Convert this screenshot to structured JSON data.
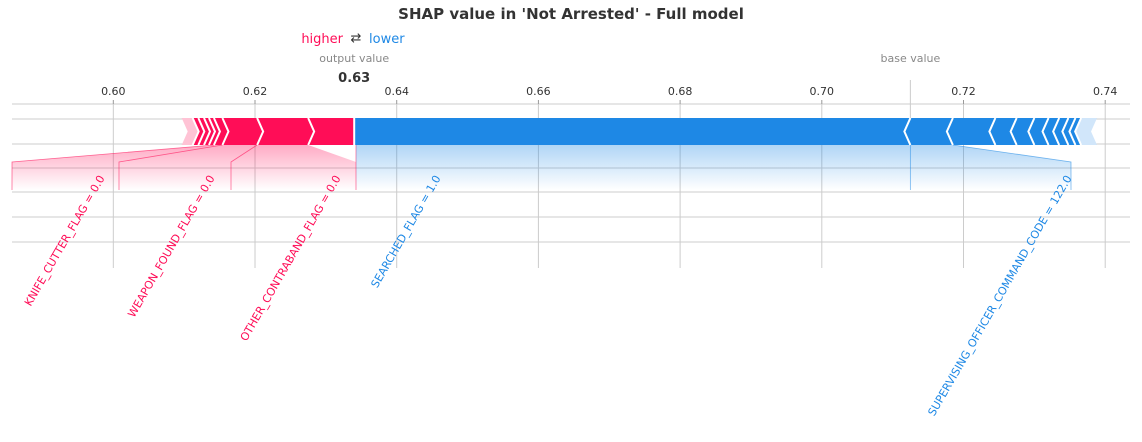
{
  "chart_data": {
    "type": "force",
    "title": "SHAP value in 'Not Arrested' - Full model",
    "legend": {
      "higher": "higher",
      "arrow": "⇄",
      "lower": "lower"
    },
    "output_label": "output value",
    "output_value": 0.634,
    "output_value_text": "0.63",
    "base_label": "base value",
    "base_value": 0.7125,
    "xlim": [
      0.5857,
      0.7435
    ],
    "ticks": [
      0.6,
      0.62,
      0.64,
      0.66,
      0.68,
      0.7,
      0.72,
      0.74
    ],
    "tick_labels": [
      "0.60",
      "0.62",
      "0.64",
      "0.66",
      "0.68",
      "0.70",
      "0.72",
      "0.74"
    ],
    "grid": true,
    "higher_features": [
      {
        "label": "KNIFE_CUTTER_FLAG = 0.0",
        "start": 0.6142,
        "end": 0.6154,
        "labeled": true
      },
      {
        "label": "WEAPON_FOUND_FLAG = 0.0",
        "start": 0.6154,
        "end": 0.6203,
        "labeled": true
      },
      {
        "label": "OTHER_CONTRABAND_FLAG = 0.0",
        "start": 0.6203,
        "end": 0.6275,
        "labeled": true
      },
      {
        "label": "",
        "start": 0.6275,
        "end": 0.634,
        "labeled": false
      },
      {
        "start": 0.6105,
        "end": 0.6112
      },
      {
        "start": 0.6112,
        "end": 0.612
      },
      {
        "start": 0.612,
        "end": 0.6128
      },
      {
        "start": 0.6128,
        "end": 0.6135
      },
      {
        "start": 0.6135,
        "end": 0.6142
      }
    ],
    "lower_features": [
      {
        "label": "SEARCHED_FLAG = 1.0",
        "start": 0.634,
        "end": 0.7125,
        "labeled": true
      },
      {
        "label": "SUPERVISING_OFFICER_COMMAND_CODE = 122.0",
        "start": 0.7125,
        "end": 0.7185,
        "labeled": true
      },
      {
        "start": 0.7185,
        "end": 0.7245
      },
      {
        "start": 0.7245,
        "end": 0.7275
      },
      {
        "start": 0.7275,
        "end": 0.73
      },
      {
        "start": 0.73,
        "end": 0.732
      },
      {
        "start": 0.732,
        "end": 0.7335
      },
      {
        "start": 0.7335,
        "end": 0.7348
      },
      {
        "start": 0.7348,
        "end": 0.7358
      },
      {
        "start": 0.7358,
        "end": 0.7366
      },
      {
        "start": 0.7366,
        "end": 0.738
      }
    ],
    "colors": {
      "higher": "#ff0d57",
      "higher_light": "#ffc3d5",
      "lower": "#1e88e5",
      "lower_light": "#d1e6fa",
      "grid": "#cccccc",
      "axis": "#cccccc"
    }
  }
}
